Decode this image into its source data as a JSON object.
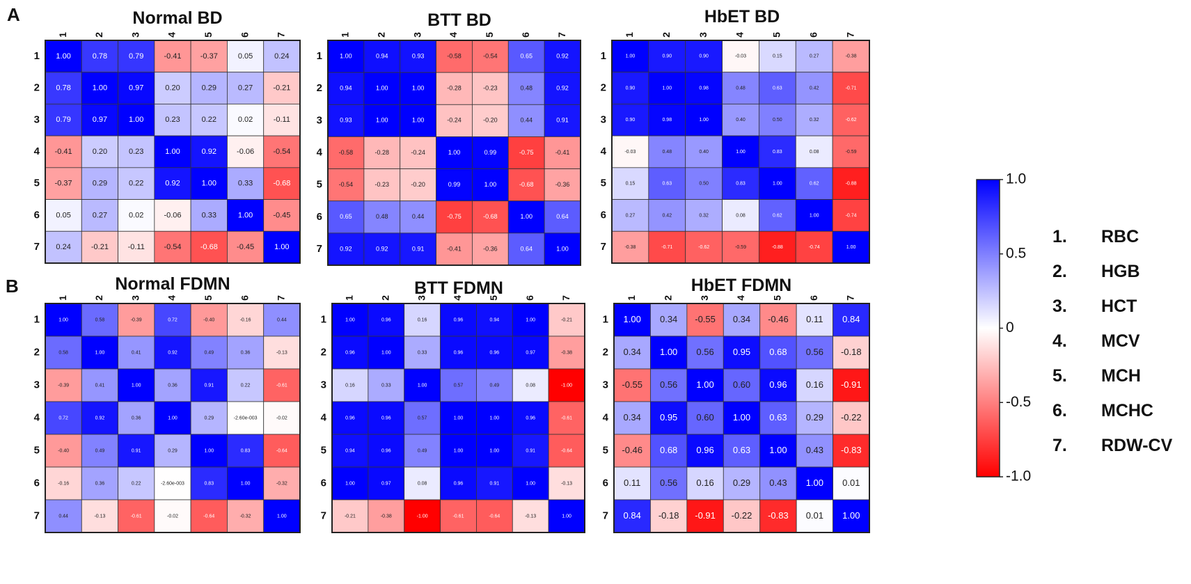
{
  "panel_labels": [
    "A",
    "B"
  ],
  "variables": [
    {
      "num": "1.",
      "name": "RBC"
    },
    {
      "num": "2.",
      "name": "HGB"
    },
    {
      "num": "3.",
      "name": "HCT"
    },
    {
      "num": "4.",
      "name": "MCV"
    },
    {
      "num": "5.",
      "name": "MCH"
    },
    {
      "num": "6.",
      "name": "MCHC"
    },
    {
      "num": "7.",
      "name": "RDW-CV"
    }
  ],
  "colorbar": {
    "ticks": [
      "1.0",
      "0.5",
      "0",
      "-0.5",
      "-1.0"
    ],
    "tick_values": [
      1.0,
      0.5,
      0,
      -0.5,
      -1.0
    ],
    "colors": {
      "positive": "#0000ff",
      "zero": "#ffffff",
      "negative": "#ff0000"
    }
  },
  "chart_data": [
    {
      "type": "heatmap",
      "title": "Normal BD",
      "row_labels": [
        "1",
        "2",
        "3",
        "4",
        "5",
        "6",
        "7"
      ],
      "col_labels": [
        "1",
        "2",
        "3",
        "4",
        "5",
        "6",
        "7"
      ],
      "vmin": -1.0,
      "vmax": 1.0,
      "values": [
        [
          1.0,
          0.78,
          0.79,
          -0.41,
          -0.37,
          0.05,
          0.24
        ],
        [
          0.78,
          1.0,
          0.97,
          0.2,
          0.29,
          0.27,
          -0.21
        ],
        [
          0.79,
          0.97,
          1.0,
          0.23,
          0.22,
          0.02,
          -0.11
        ],
        [
          -0.41,
          0.2,
          0.23,
          1.0,
          0.92,
          -0.06,
          -0.54
        ],
        [
          -0.37,
          0.29,
          0.22,
          0.92,
          1.0,
          0.33,
          -0.68
        ],
        [
          0.05,
          0.27,
          0.02,
          -0.06,
          0.33,
          1.0,
          -0.45
        ],
        [
          0.24,
          -0.21,
          -0.11,
          -0.54,
          -0.68,
          -0.45,
          1.0
        ]
      ]
    },
    {
      "type": "heatmap",
      "title": "BTT BD",
      "row_labels": [
        "1",
        "2",
        "3",
        "4",
        "5",
        "6",
        "7"
      ],
      "col_labels": [
        "1",
        "2",
        "3",
        "4",
        "5",
        "6",
        "7"
      ],
      "vmin": -1.0,
      "vmax": 1.0,
      "values": [
        [
          1.0,
          0.94,
          0.93,
          -0.58,
          -0.54,
          0.65,
          0.92
        ],
        [
          0.94,
          1.0,
          1.0,
          -0.28,
          -0.23,
          0.48,
          0.92
        ],
        [
          0.93,
          1.0,
          1.0,
          -0.24,
          -0.2,
          0.44,
          0.91
        ],
        [
          -0.58,
          -0.28,
          -0.24,
          1.0,
          0.99,
          -0.75,
          -0.41
        ],
        [
          -0.54,
          -0.23,
          -0.2,
          0.99,
          1.0,
          -0.68,
          -0.36
        ],
        [
          0.65,
          0.48,
          0.44,
          -0.75,
          -0.68,
          1.0,
          0.64
        ],
        [
          0.92,
          0.92,
          0.91,
          -0.41,
          -0.36,
          0.64,
          1.0
        ]
      ]
    },
    {
      "type": "heatmap",
      "title": "HbET BD",
      "row_labels": [
        "1",
        "2",
        "3",
        "4",
        "5",
        "6",
        "7"
      ],
      "col_labels": [
        "1",
        "2",
        "3",
        "4",
        "5",
        "6",
        "7"
      ],
      "vmin": -1.0,
      "vmax": 1.0,
      "values": [
        [
          1.0,
          0.9,
          0.9,
          -0.03,
          0.15,
          0.27,
          -0.38
        ],
        [
          0.9,
          1.0,
          0.98,
          0.48,
          0.63,
          0.42,
          -0.71
        ],
        [
          0.9,
          0.98,
          1.0,
          0.4,
          0.5,
          0.32,
          -0.62
        ],
        [
          -0.03,
          0.48,
          0.4,
          1.0,
          0.83,
          0.08,
          -0.59
        ],
        [
          0.15,
          0.63,
          0.5,
          0.83,
          1.0,
          0.62,
          -0.88
        ],
        [
          0.27,
          0.42,
          0.32,
          0.08,
          0.62,
          1.0,
          -0.74
        ],
        [
          -0.38,
          -0.71,
          -0.62,
          -0.59,
          -0.88,
          -0.74,
          1.0
        ]
      ]
    },
    {
      "type": "heatmap",
      "title": "Normal FDMN",
      "row_labels": [
        "1",
        "2",
        "3",
        "4",
        "5",
        "6",
        "7"
      ],
      "col_labels": [
        "1",
        "2",
        "3",
        "4",
        "5",
        "6",
        "7"
      ],
      "vmin": -1.0,
      "vmax": 1.0,
      "values": [
        [
          1.0,
          0.58,
          -0.39,
          0.72,
          -0.4,
          -0.16,
          0.44
        ],
        [
          0.58,
          1.0,
          0.41,
          0.92,
          0.49,
          0.36,
          -0.13
        ],
        [
          -0.39,
          0.41,
          1.0,
          0.36,
          0.91,
          0.22,
          -0.61
        ],
        [
          0.72,
          0.92,
          0.36,
          1.0,
          0.29,
          "-2.60e-003",
          -0.02
        ],
        [
          -0.4,
          0.49,
          0.91,
          0.29,
          1.0,
          0.83,
          -0.64
        ],
        [
          -0.16,
          0.36,
          0.22,
          "-2.60e-003",
          0.83,
          1.0,
          -0.32
        ],
        [
          0.44,
          -0.13,
          -0.61,
          -0.02,
          -0.64,
          -0.32,
          1.0
        ]
      ]
    },
    {
      "type": "heatmap",
      "title": "BTT FDMN",
      "row_labels": [
        "1",
        "2",
        "3",
        "4",
        "5",
        "6",
        "7"
      ],
      "col_labels": [
        "1",
        "2",
        "3",
        "4",
        "5",
        "6",
        "7"
      ],
      "vmin": -1.0,
      "vmax": 1.0,
      "values": [
        [
          1.0,
          0.96,
          0.16,
          0.96,
          0.94,
          1.0,
          -0.21
        ],
        [
          0.96,
          1.0,
          0.33,
          0.96,
          0.96,
          0.97,
          -0.38
        ],
        [
          0.16,
          0.33,
          1.0,
          0.57,
          0.49,
          0.08,
          -1.0
        ],
        [
          0.96,
          0.96,
          0.57,
          1.0,
          1.0,
          0.96,
          -0.61
        ],
        [
          0.94,
          0.96,
          0.49,
          1.0,
          1.0,
          0.91,
          -0.64
        ],
        [
          1.0,
          0.97,
          0.08,
          0.96,
          0.91,
          1.0,
          -0.13
        ],
        [
          -0.21,
          -0.38,
          -1.0,
          -0.61,
          -0.64,
          -0.13,
          1.0
        ]
      ]
    },
    {
      "type": "heatmap",
      "title": "HbET FDMN",
      "row_labels": [
        "1",
        "2",
        "3",
        "4",
        "5",
        "6",
        "7"
      ],
      "col_labels": [
        "1",
        "2",
        "3",
        "4",
        "5",
        "6",
        "7"
      ],
      "vmin": -1.0,
      "vmax": 1.0,
      "values": [
        [
          1.0,
          0.34,
          -0.55,
          0.34,
          -0.46,
          0.11,
          0.84
        ],
        [
          0.34,
          1.0,
          0.56,
          0.95,
          0.68,
          0.56,
          -0.18
        ],
        [
          -0.55,
          0.56,
          1.0,
          0.6,
          0.96,
          0.16,
          -0.91
        ],
        [
          0.34,
          0.95,
          0.6,
          1.0,
          0.63,
          0.29,
          -0.22
        ],
        [
          -0.46,
          0.68,
          0.96,
          0.63,
          1.0,
          0.43,
          -0.83
        ],
        [
          0.11,
          0.56,
          0.16,
          0.29,
          0.43,
          1.0,
          0.01
        ],
        [
          0.84,
          -0.18,
          -0.91,
          -0.22,
          -0.83,
          0.01,
          1.0
        ]
      ]
    }
  ]
}
